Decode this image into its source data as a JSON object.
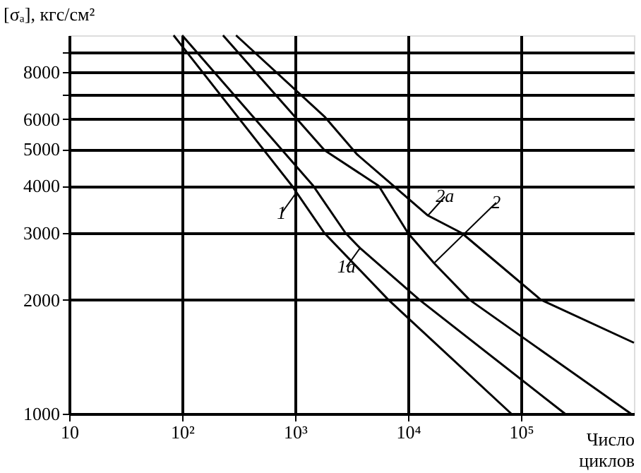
{
  "chart_data": {
    "type": "line",
    "ylabel": "[σₐ], кгс/см²",
    "xlabel": "Число циклов",
    "log": "xy",
    "xlim": [
      10,
      1000000
    ],
    "xticks": [
      10,
      {
        "value": 100,
        "label": "10²"
      },
      {
        "value": 1000,
        "label": "10³"
      },
      {
        "value": 10000,
        "label": "10⁴"
      },
      {
        "value": 100000,
        "label": "10⁵"
      }
    ],
    "ylim": [
      1000,
      10000
    ],
    "yticks": [
      1000,
      2000,
      3000,
      4000,
      5000,
      6000,
      {
        "value": 7000,
        "label": null
      },
      8000,
      {
        "value": 9000,
        "label": null
      }
    ],
    "grid": true,
    "legend": false,
    "marker": "none",
    "line_style": "solid",
    "series": [
      {
        "color": "#000000",
        "x": [
          84,
          940,
          1820,
          6700,
          82000
        ],
        "values": [
          10000,
          4000,
          3000,
          2000,
          1000
        ]
      },
      {
        "color": "#000000",
        "x": [
          100,
          1450,
          2800,
          3760,
          12600,
          245000
        ],
        "values": [
          10000,
          4000,
          3000,
          2740,
          2000,
          1000
        ]
      },
      {
        "color": "#000000",
        "x": [
          230,
          1820,
          5500,
          10000,
          17000,
          35000,
          940000
        ],
        "values": [
          10000,
          4970,
          4000,
          3000,
          2500,
          2000,
          1000
        ]
      },
      {
        "color": "#000000",
        "x": [
          300,
          1820,
          3550,
          15000,
          30000,
          150000,
          1000000
        ],
        "values": [
          10000,
          6100,
          4840,
          3340,
          3000,
          2000,
          1540
        ]
      }
    ],
    "annotations": [
      {
        "text": "1",
        "x": 1000,
        "y": 3800
      },
      {
        "text": "1a",
        "x": 3760,
        "y": 2740
      },
      {
        "text": "2",
        "x": 17000,
        "y": 2500
      },
      {
        "text": "2a",
        "x": 15000,
        "y": 3340
      }
    ]
  }
}
